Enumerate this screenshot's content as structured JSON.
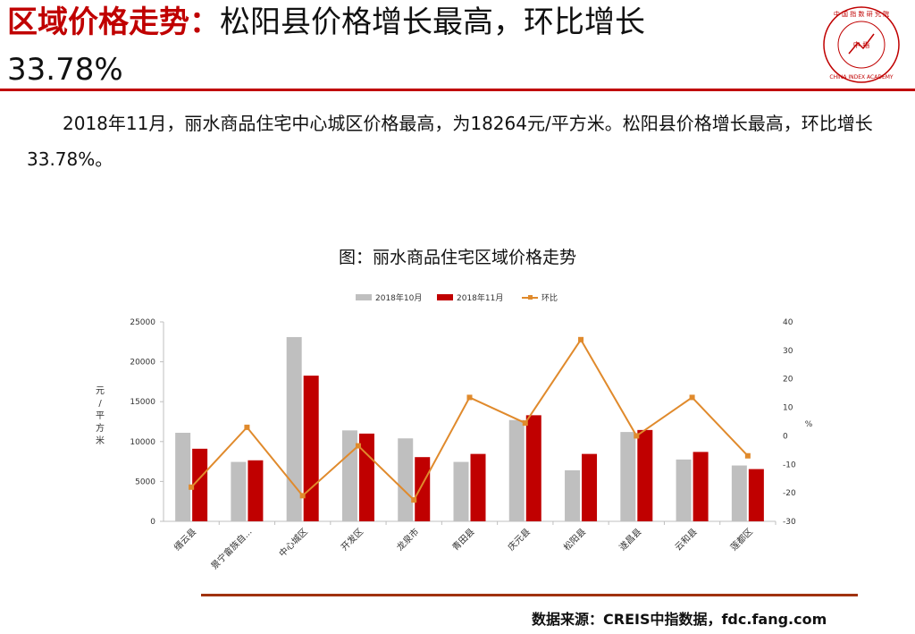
{
  "header": {
    "title_prefix": "区域价格走势：",
    "title_rest": "松阳县价格增长最高，环比增长",
    "title_line2": "33.78%"
  },
  "logo": {
    "text_top": "中 国 指 数 研 究 院",
    "text_bottom": "CHINA INDEX ACADEMY",
    "center": "中 指"
  },
  "paragraph": "2018年11月，丽水商品住宅中心城区价格最高，为18264元/平方米。松阳县价格增长最高，环比增长33.78%。",
  "source": "数据来源：CREIS中指数据，fdc.fang.com",
  "colors": {
    "accent": "#c00000",
    "bar_oct": "#bfbfbf",
    "bar_nov": "#c00000",
    "line": "#e08a2c"
  },
  "chart_data": {
    "type": "bar",
    "title": "图：丽水商品住宅区域价格走势",
    "categories": [
      "缙云县",
      "景宁畲族自...",
      "中心城区",
      "开发区",
      "龙泉市",
      "青田县",
      "庆元县",
      "松阳县",
      "遂昌县",
      "云和县",
      "莲都区"
    ],
    "series": [
      {
        "name": "2018年10月",
        "axis": "left",
        "values": [
          11100,
          7450,
          23100,
          11400,
          10400,
          7450,
          12700,
          6400,
          11200,
          7750,
          7000
        ]
      },
      {
        "name": "2018年11月",
        "axis": "left",
        "values": [
          9100,
          7650,
          18264,
          11000,
          8050,
          8450,
          13300,
          8450,
          11450,
          8700,
          6550
        ]
      },
      {
        "name": "环比",
        "axis": "right",
        "type": "line",
        "values": [
          -18,
          3,
          -21,
          -3.5,
          -22.5,
          13.5,
          4.5,
          33.78,
          0,
          13.5,
          -7
        ]
      }
    ],
    "ylabel": "元/平方米",
    "y2label": "%",
    "ylim": [
      0,
      25000
    ],
    "yticks": [
      0,
      5000,
      10000,
      15000,
      20000,
      25000
    ],
    "y2lim": [
      -30,
      40
    ],
    "y2ticks": [
      -30,
      -20,
      -10,
      0,
      10,
      20,
      30,
      40
    ],
    "legend": "top",
    "grid": false
  }
}
